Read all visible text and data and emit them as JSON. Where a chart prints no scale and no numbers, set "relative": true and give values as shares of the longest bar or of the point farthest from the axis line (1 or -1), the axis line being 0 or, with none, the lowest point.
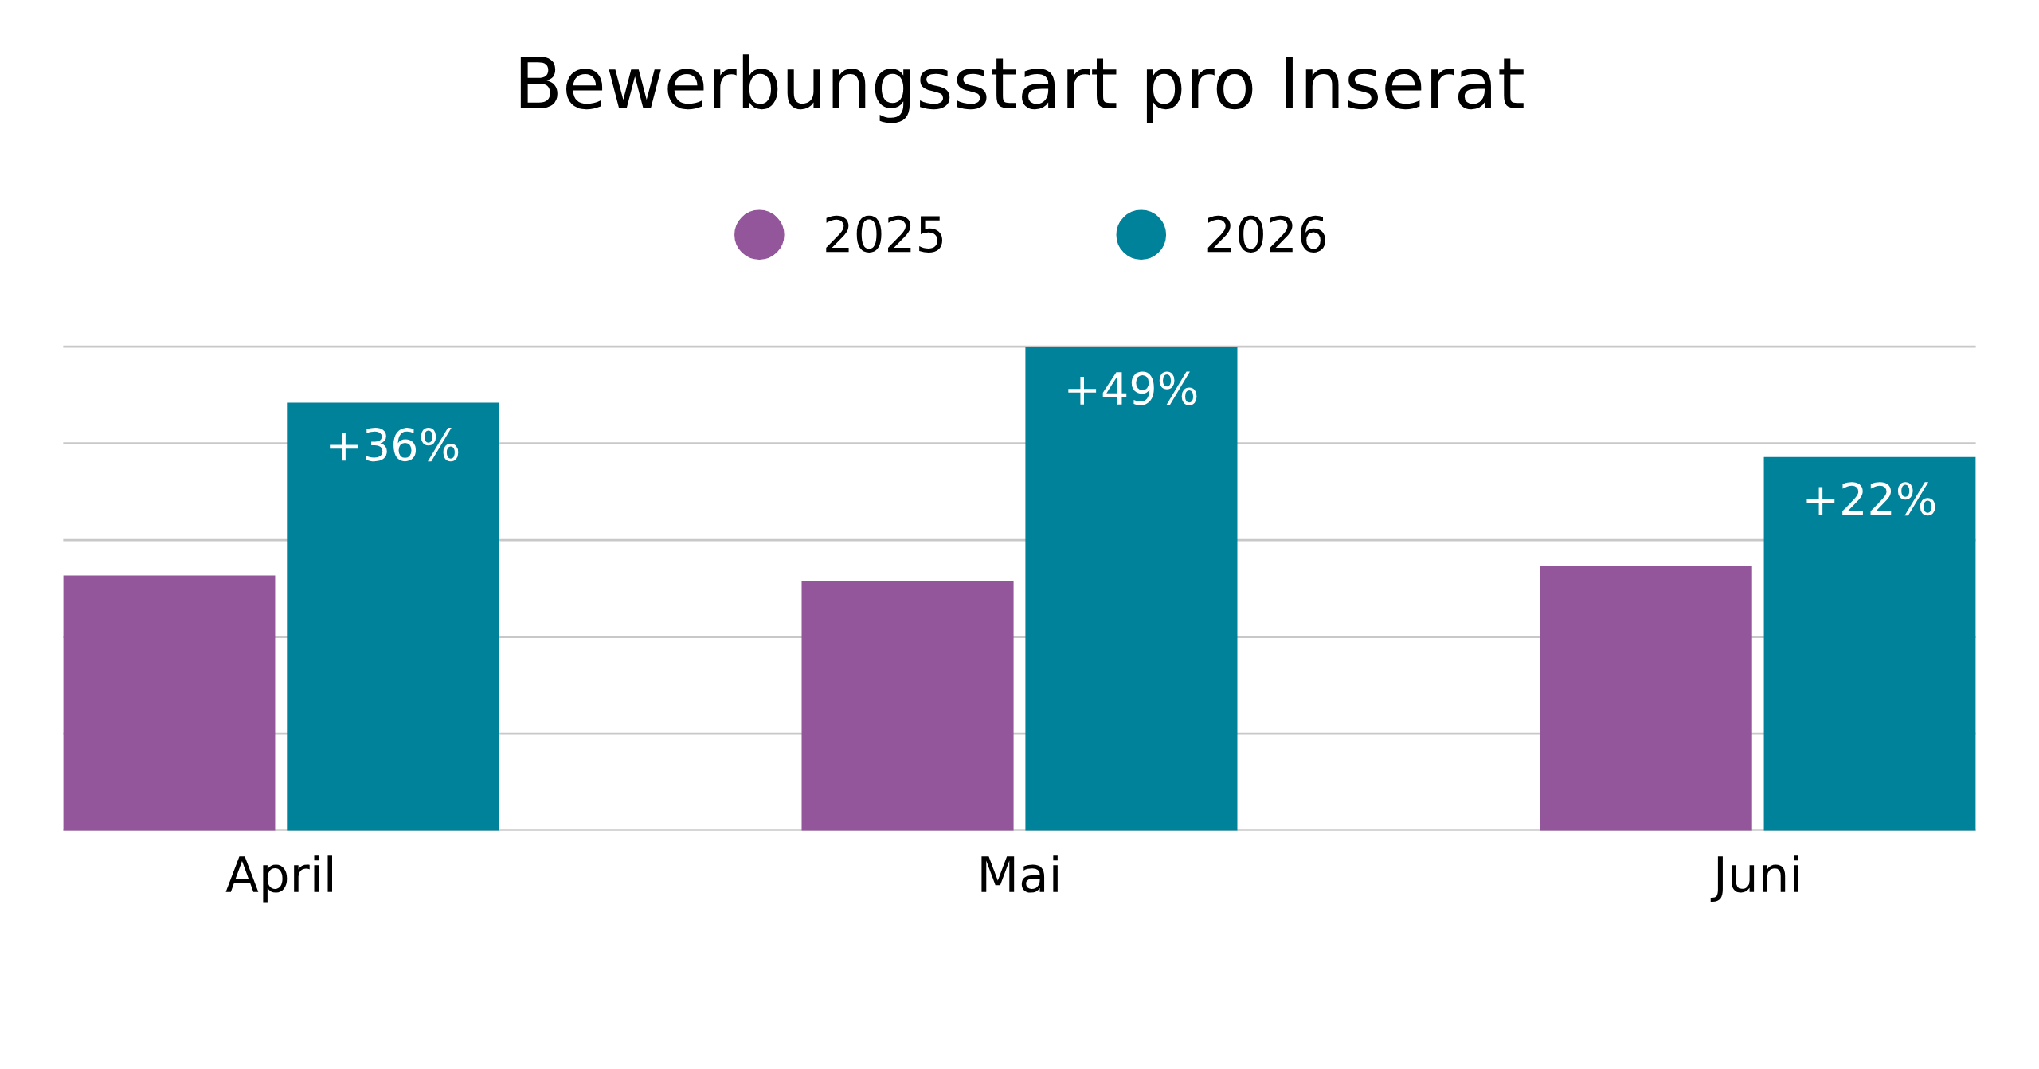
{
  "chart_data": {
    "type": "bar",
    "title": "Bewerbungsstart pro Inserat",
    "relative": true,
    "categories": [
      "April",
      "Mai",
      "Juni"
    ],
    "series": [
      {
        "name": "2025",
        "color": "#93569b",
        "values": [
          0.527,
          0.516,
          0.546
        ]
      },
      {
        "name": "2026",
        "color": "#00829a",
        "values": [
          0.884,
          1.0,
          0.772
        ]
      }
    ],
    "annotations": [
      "+36%",
      "+49%",
      "+22%"
    ],
    "grid": "y",
    "legend": "top"
  }
}
